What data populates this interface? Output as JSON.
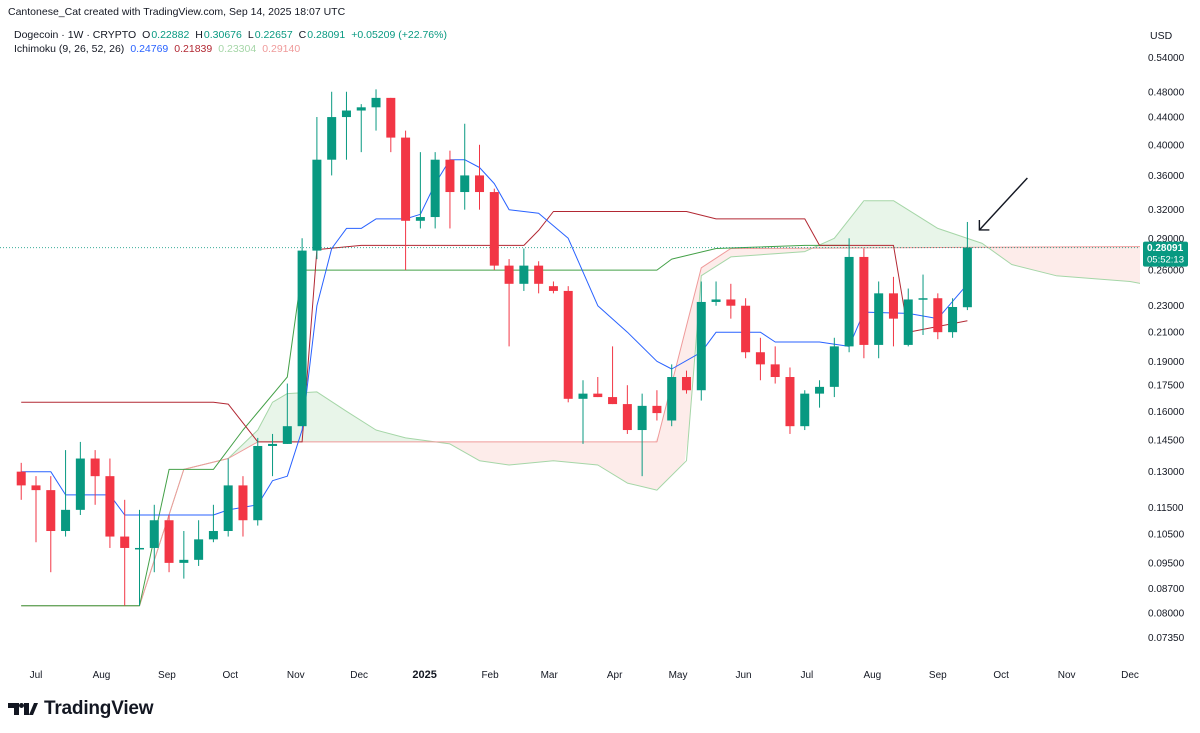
{
  "credit": "Cantonese_Cat created with TradingView.com, Sep 14, 2025 18:07 UTC",
  "legend": {
    "symbol": "Dogecoin · 1W · CRYPTO",
    "o_label": "O",
    "o": "0.22882",
    "h_label": "H",
    "h": "0.30676",
    "l_label": "L",
    "l": "0.22657",
    "c_label": "C",
    "c": "0.28091",
    "change": "+0.05209 (+22.76%)",
    "indicator": "Ichimoku (9, 26, 52, 26)",
    "tenkan": "0.24769",
    "kijun": "0.21839",
    "span_a": "0.23304",
    "span_b": "0.29140"
  },
  "currency": "USD",
  "last_price": {
    "value": "0.28091",
    "countdown": "05:52:13"
  },
  "logo_text": "TradingView",
  "colors": {
    "up": "#26a69a",
    "up_dark": "#089981",
    "down": "#f23645",
    "tenkan": "#2962ff",
    "kijun": "#b22833",
    "span_a": "#a5d6a7",
    "span_b": "#ef9a9a",
    "cloud_bull": "#e8f5e9",
    "cloud_bear": "#fdecea",
    "lagging": "#43a047",
    "text": "#131722",
    "muted": "#787b86"
  },
  "chart_data": {
    "type": "candlestick",
    "y_scale": "log",
    "y_ticks": [
      "0.54000",
      "0.48000",
      "0.44000",
      "0.40000",
      "0.36000",
      "0.32000",
      "0.29000",
      "0.26000",
      "0.23000",
      "0.21000",
      "0.19000",
      "0.17500",
      "0.16000",
      "0.14500",
      "0.13000",
      "0.11500",
      "0.10500",
      "0.09500",
      "0.08700",
      "0.08000",
      "0.07350"
    ],
    "x_ticks": [
      "Jul",
      "Aug",
      "Sep",
      "Oct",
      "Nov",
      "Dec",
      "2025",
      "Feb",
      "Mar",
      "Apr",
      "May",
      "Jun",
      "Jul",
      "Aug",
      "Sep",
      "Oct",
      "Nov",
      "Dec"
    ],
    "x_tick_bold": "2025",
    "x_tick_dates": [
      "2024-07-01",
      "2024-08-01",
      "2024-09-01",
      "2024-10-01",
      "2024-11-01",
      "2024-12-01",
      "2025-01-01",
      "2025-02-01",
      "2025-03-01",
      "2025-04-01",
      "2025-05-01",
      "2025-06-01",
      "2025-07-01",
      "2025-08-01",
      "2025-09-01",
      "2025-10-01",
      "2025-11-01",
      "2025-12-01"
    ],
    "candles": [
      {
        "d": "2024-06-24",
        "o": 0.13,
        "h": 0.134,
        "l": 0.118,
        "c": 0.124
      },
      {
        "d": "2024-07-01",
        "o": 0.124,
        "h": 0.128,
        "l": 0.102,
        "c": 0.122
      },
      {
        "d": "2024-07-08",
        "o": 0.122,
        "h": 0.128,
        "l": 0.092,
        "c": 0.106
      },
      {
        "d": "2024-07-15",
        "o": 0.106,
        "h": 0.14,
        "l": 0.104,
        "c": 0.114
      },
      {
        "d": "2024-07-22",
        "o": 0.114,
        "h": 0.144,
        "l": 0.112,
        "c": 0.136
      },
      {
        "d": "2024-07-29",
        "o": 0.136,
        "h": 0.14,
        "l": 0.116,
        "c": 0.128
      },
      {
        "d": "2024-08-05",
        "o": 0.128,
        "h": 0.136,
        "l": 0.1,
        "c": 0.104
      },
      {
        "d": "2024-08-12",
        "o": 0.104,
        "h": 0.118,
        "l": 0.082,
        "c": 0.1
      },
      {
        "d": "2024-08-19",
        "o": 0.1,
        "h": 0.114,
        "l": 0.082,
        "c": 0.1
      },
      {
        "d": "2024-08-26",
        "o": 0.1,
        "h": 0.116,
        "l": 0.092,
        "c": 0.11
      },
      {
        "d": "2024-09-02",
        "o": 0.11,
        "h": 0.112,
        "l": 0.092,
        "c": 0.095
      },
      {
        "d": "2024-09-09",
        "o": 0.095,
        "h": 0.106,
        "l": 0.09,
        "c": 0.096
      },
      {
        "d": "2024-09-16",
        "o": 0.096,
        "h": 0.11,
        "l": 0.094,
        "c": 0.103
      },
      {
        "d": "2024-09-23",
        "o": 0.103,
        "h": 0.116,
        "l": 0.102,
        "c": 0.106
      },
      {
        "d": "2024-09-30",
        "o": 0.106,
        "h": 0.136,
        "l": 0.104,
        "c": 0.124
      },
      {
        "d": "2024-10-07",
        "o": 0.124,
        "h": 0.128,
        "l": 0.104,
        "c": 0.11
      },
      {
        "d": "2024-10-14",
        "o": 0.11,
        "h": 0.146,
        "l": 0.108,
        "c": 0.142
      },
      {
        "d": "2024-10-21",
        "o": 0.142,
        "h": 0.148,
        "l": 0.128,
        "c": 0.143
      },
      {
        "d": "2024-10-28",
        "o": 0.143,
        "h": 0.176,
        "l": 0.143,
        "c": 0.152
      },
      {
        "d": "2024-11-04",
        "o": 0.152,
        "h": 0.29,
        "l": 0.152,
        "c": 0.278
      },
      {
        "d": "2024-11-11",
        "o": 0.278,
        "h": 0.44,
        "l": 0.27,
        "c": 0.38
      },
      {
        "d": "2024-11-18",
        "o": 0.38,
        "h": 0.48,
        "l": 0.36,
        "c": 0.44
      },
      {
        "d": "2024-11-25",
        "o": 0.44,
        "h": 0.48,
        "l": 0.38,
        "c": 0.45
      },
      {
        "d": "2024-12-02",
        "o": 0.45,
        "h": 0.46,
        "l": 0.39,
        "c": 0.455
      },
      {
        "d": "2024-12-09",
        "o": 0.455,
        "h": 0.484,
        "l": 0.42,
        "c": 0.47
      },
      {
        "d": "2024-12-16",
        "o": 0.47,
        "h": 0.47,
        "l": 0.39,
        "c": 0.41
      },
      {
        "d": "2024-12-23",
        "o": 0.41,
        "h": 0.42,
        "l": 0.26,
        "c": 0.308
      },
      {
        "d": "2024-12-30",
        "o": 0.308,
        "h": 0.39,
        "l": 0.3,
        "c": 0.312
      },
      {
        "d": "2025-01-06",
        "o": 0.312,
        "h": 0.39,
        "l": 0.3,
        "c": 0.38
      },
      {
        "d": "2025-01-13",
        "o": 0.38,
        "h": 0.392,
        "l": 0.3,
        "c": 0.34
      },
      {
        "d": "2025-01-20",
        "o": 0.34,
        "h": 0.43,
        "l": 0.32,
        "c": 0.36
      },
      {
        "d": "2025-01-27",
        "o": 0.36,
        "h": 0.4,
        "l": 0.32,
        "c": 0.34
      },
      {
        "d": "2025-02-03",
        "o": 0.34,
        "h": 0.344,
        "l": 0.26,
        "c": 0.264
      },
      {
        "d": "2025-02-10",
        "o": 0.264,
        "h": 0.27,
        "l": 0.2,
        "c": 0.248
      },
      {
        "d": "2025-02-17",
        "o": 0.248,
        "h": 0.28,
        "l": 0.242,
        "c": 0.264
      },
      {
        "d": "2025-02-24",
        "o": 0.264,
        "h": 0.268,
        "l": 0.24,
        "c": 0.248
      },
      {
        "d": "2025-03-03",
        "o": 0.246,
        "h": 0.25,
        "l": 0.24,
        "c": 0.242
      },
      {
        "d": "2025-03-10",
        "o": 0.242,
        "h": 0.246,
        "l": 0.165,
        "c": 0.167
      },
      {
        "d": "2025-03-17",
        "o": 0.167,
        "h": 0.178,
        "l": 0.143,
        "c": 0.17
      },
      {
        "d": "2025-03-24",
        "o": 0.17,
        "h": 0.18,
        "l": 0.168,
        "c": 0.168
      },
      {
        "d": "2025-03-31",
        "o": 0.168,
        "h": 0.2,
        "l": 0.164,
        "c": 0.164
      },
      {
        "d": "2025-04-07",
        "o": 0.164,
        "h": 0.175,
        "l": 0.148,
        "c": 0.15
      },
      {
        "d": "2025-04-14",
        "o": 0.15,
        "h": 0.17,
        "l": 0.128,
        "c": 0.163
      },
      {
        "d": "2025-04-21",
        "o": 0.163,
        "h": 0.172,
        "l": 0.155,
        "c": 0.159
      },
      {
        "d": "2025-04-28",
        "o": 0.155,
        "h": 0.188,
        "l": 0.152,
        "c": 0.18
      },
      {
        "d": "2025-05-05",
        "o": 0.18,
        "h": 0.184,
        "l": 0.17,
        "c": 0.172
      },
      {
        "d": "2025-05-12",
        "o": 0.172,
        "h": 0.25,
        "l": 0.166,
        "c": 0.233
      },
      {
        "d": "2025-05-19",
        "o": 0.233,
        "h": 0.25,
        "l": 0.23,
        "c": 0.235
      },
      {
        "d": "2025-05-26",
        "o": 0.235,
        "h": 0.248,
        "l": 0.22,
        "c": 0.23
      },
      {
        "d": "2025-06-02",
        "o": 0.23,
        "h": 0.236,
        "l": 0.192,
        "c": 0.196
      },
      {
        "d": "2025-06-09",
        "o": 0.196,
        "h": 0.206,
        "l": 0.178,
        "c": 0.188
      },
      {
        "d": "2025-06-16",
        "o": 0.188,
        "h": 0.2,
        "l": 0.176,
        "c": 0.18
      },
      {
        "d": "2025-06-23",
        "o": 0.18,
        "h": 0.186,
        "l": 0.148,
        "c": 0.152
      },
      {
        "d": "2025-06-30",
        "o": 0.152,
        "h": 0.172,
        "l": 0.15,
        "c": 0.17
      },
      {
        "d": "2025-07-07",
        "o": 0.17,
        "h": 0.178,
        "l": 0.162,
        "c": 0.174
      },
      {
        "d": "2025-07-14",
        "o": 0.174,
        "h": 0.206,
        "l": 0.168,
        "c": 0.2
      },
      {
        "d": "2025-07-21",
        "o": 0.2,
        "h": 0.29,
        "l": 0.196,
        "c": 0.272
      },
      {
        "d": "2025-07-28",
        "o": 0.272,
        "h": 0.28,
        "l": 0.192,
        "c": 0.201
      },
      {
        "d": "2025-08-04",
        "o": 0.201,
        "h": 0.25,
        "l": 0.192,
        "c": 0.24
      },
      {
        "d": "2025-08-11",
        "o": 0.24,
        "h": 0.254,
        "l": 0.2,
        "c": 0.22
      },
      {
        "d": "2025-08-18",
        "o": 0.201,
        "h": 0.244,
        "l": 0.2,
        "c": 0.235
      },
      {
        "d": "2025-08-25",
        "o": 0.235,
        "h": 0.256,
        "l": 0.208,
        "c": 0.236
      },
      {
        "d": "2025-09-01",
        "o": 0.236,
        "h": 0.24,
        "l": 0.205,
        "c": 0.21
      },
      {
        "d": "2025-09-08",
        "o": 0.21,
        "h": 0.236,
        "l": 0.206,
        "c": 0.229
      },
      {
        "d": "2025-09-15",
        "o": 0.22882,
        "h": 0.30676,
        "l": 0.22657,
        "c": 0.28091
      }
    ],
    "tenkan": [
      {
        "d": "2024-06-24",
        "v": 0.13
      },
      {
        "d": "2024-07-08",
        "v": 0.13
      },
      {
        "d": "2024-07-15",
        "v": 0.12
      },
      {
        "d": "2024-08-05",
        "v": 0.12
      },
      {
        "d": "2024-08-12",
        "v": 0.112
      },
      {
        "d": "2024-09-23",
        "v": 0.112
      },
      {
        "d": "2024-09-30",
        "v": 0.114
      },
      {
        "d": "2024-10-14",
        "v": 0.116
      },
      {
        "d": "2024-10-21",
        "v": 0.126
      },
      {
        "d": "2024-10-28",
        "v": 0.128
      },
      {
        "d": "2024-11-04",
        "v": 0.15
      },
      {
        "d": "2024-11-11",
        "v": 0.23
      },
      {
        "d": "2024-11-18",
        "v": 0.28
      },
      {
        "d": "2024-11-25",
        "v": 0.3
      },
      {
        "d": "2024-12-02",
        "v": 0.3
      },
      {
        "d": "2024-12-09",
        "v": 0.31
      },
      {
        "d": "2024-12-23",
        "v": 0.31
      },
      {
        "d": "2024-12-30",
        "v": 0.315
      },
      {
        "d": "2025-01-06",
        "v": 0.35
      },
      {
        "d": "2025-01-13",
        "v": 0.38
      },
      {
        "d": "2025-01-20",
        "v": 0.38
      },
      {
        "d": "2025-01-27",
        "v": 0.37
      },
      {
        "d": "2025-02-03",
        "v": 0.35
      },
      {
        "d": "2025-02-10",
        "v": 0.32
      },
      {
        "d": "2025-02-24",
        "v": 0.316
      },
      {
        "d": "2025-03-10",
        "v": 0.29
      },
      {
        "d": "2025-03-24",
        "v": 0.23
      },
      {
        "d": "2025-04-07",
        "v": 0.21
      },
      {
        "d": "2025-04-21",
        "v": 0.19
      },
      {
        "d": "2025-04-28",
        "v": 0.185
      },
      {
        "d": "2025-05-12",
        "v": 0.196
      },
      {
        "d": "2025-05-19",
        "v": 0.21
      },
      {
        "d": "2025-06-09",
        "v": 0.21
      },
      {
        "d": "2025-06-16",
        "v": 0.203
      },
      {
        "d": "2025-07-07",
        "v": 0.203
      },
      {
        "d": "2025-07-21",
        "v": 0.2
      },
      {
        "d": "2025-07-28",
        "v": 0.225
      },
      {
        "d": "2025-08-18",
        "v": 0.224
      },
      {
        "d": "2025-09-01",
        "v": 0.22
      },
      {
        "d": "2025-09-15",
        "v": 0.2477
      }
    ],
    "kijun": [
      {
        "d": "2024-06-24",
        "v": 0.165
      },
      {
        "d": "2024-09-23",
        "v": 0.165
      },
      {
        "d": "2024-09-30",
        "v": 0.164
      },
      {
        "d": "2024-10-14",
        "v": 0.144
      },
      {
        "d": "2024-11-04",
        "v": 0.144
      },
      {
        "d": "2024-11-11",
        "v": 0.279
      },
      {
        "d": "2024-12-02",
        "v": 0.283
      },
      {
        "d": "2025-02-17",
        "v": 0.283
      },
      {
        "d": "2025-02-24",
        "v": 0.298
      },
      {
        "d": "2025-03-03",
        "v": 0.318
      },
      {
        "d": "2025-05-05",
        "v": 0.318
      },
      {
        "d": "2025-05-19",
        "v": 0.31
      },
      {
        "d": "2025-06-30",
        "v": 0.31
      },
      {
        "d": "2025-07-07",
        "v": 0.283
      },
      {
        "d": "2025-08-11",
        "v": 0.283
      },
      {
        "d": "2025-08-18",
        "v": 0.21
      },
      {
        "d": "2025-09-15",
        "v": 0.2184
      }
    ],
    "lagging": [
      {
        "d": "2024-06-24",
        "v": 0.082
      },
      {
        "d": "2024-07-29",
        "v": 0.082
      },
      {
        "d": "2024-08-05",
        "v": 0.082
      },
      {
        "d": "2024-08-19",
        "v": 0.082
      },
      {
        "d": "2024-09-02",
        "v": 0.131
      },
      {
        "d": "2024-09-23",
        "v": 0.131
      },
      {
        "d": "2024-10-07",
        "v": 0.15
      },
      {
        "d": "2024-10-28",
        "v": 0.18
      },
      {
        "d": "2024-11-04",
        "v": 0.26
      },
      {
        "d": "2025-04-21",
        "v": 0.26
      },
      {
        "d": "2025-04-28",
        "v": 0.27
      },
      {
        "d": "2025-05-19",
        "v": 0.28
      },
      {
        "d": "2025-06-30",
        "v": 0.283
      },
      {
        "d": "2025-07-21",
        "v": 0.283
      }
    ],
    "span_a": [
      {
        "d": "2024-06-24",
        "v": 0.082
      },
      {
        "d": "2024-08-19",
        "v": 0.082
      },
      {
        "d": "2024-09-09",
        "v": 0.131
      },
      {
        "d": "2024-09-30",
        "v": 0.136
      },
      {
        "d": "2024-10-14",
        "v": 0.15
      },
      {
        "d": "2024-10-21",
        "v": 0.165
      },
      {
        "d": "2024-10-28",
        "v": 0.17
      },
      {
        "d": "2024-11-11",
        "v": 0.171
      },
      {
        "d": "2024-11-25",
        "v": 0.16
      },
      {
        "d": "2024-12-09",
        "v": 0.15
      },
      {
        "d": "2024-12-23",
        "v": 0.146
      },
      {
        "d": "2025-01-13",
        "v": 0.143
      },
      {
        "d": "2025-01-27",
        "v": 0.135
      },
      {
        "d": "2025-02-10",
        "v": 0.133
      },
      {
        "d": "2025-03-03",
        "v": 0.135
      },
      {
        "d": "2025-03-24",
        "v": 0.133
      },
      {
        "d": "2025-04-07",
        "v": 0.125
      },
      {
        "d": "2025-04-21",
        "v": 0.122
      },
      {
        "d": "2025-05-05",
        "v": 0.135
      },
      {
        "d": "2025-05-12",
        "v": 0.255
      },
      {
        "d": "2025-05-26",
        "v": 0.272
      },
      {
        "d": "2025-06-30",
        "v": 0.277
      },
      {
        "d": "2025-07-14",
        "v": 0.29
      },
      {
        "d": "2025-07-28",
        "v": 0.33
      },
      {
        "d": "2025-08-11",
        "v": 0.33
      },
      {
        "d": "2025-09-01",
        "v": 0.3
      },
      {
        "d": "2025-09-22",
        "v": 0.285
      },
      {
        "d": "2025-10-06",
        "v": 0.265
      },
      {
        "d": "2025-10-27",
        "v": 0.255
      },
      {
        "d": "2025-12-01",
        "v": 0.25
      },
      {
        "d": "2025-12-22",
        "v": 0.243
      }
    ],
    "span_b": [
      {
        "d": "2024-06-24",
        "v": 0.082
      },
      {
        "d": "2024-08-19",
        "v": 0.082
      },
      {
        "d": "2024-09-09",
        "v": 0.131
      },
      {
        "d": "2024-09-30",
        "v": 0.136
      },
      {
        "d": "2024-10-14",
        "v": 0.144
      },
      {
        "d": "2024-10-21",
        "v": 0.144
      },
      {
        "d": "2025-04-21",
        "v": 0.144
      },
      {
        "d": "2025-05-12",
        "v": 0.262
      },
      {
        "d": "2025-05-26",
        "v": 0.28
      },
      {
        "d": "2025-12-22",
        "v": 0.282
      }
    ],
    "current_price": 0.28091,
    "annotation": {
      "type": "arrow",
      "direction": "down-left",
      "points_to": "last candle high"
    }
  }
}
